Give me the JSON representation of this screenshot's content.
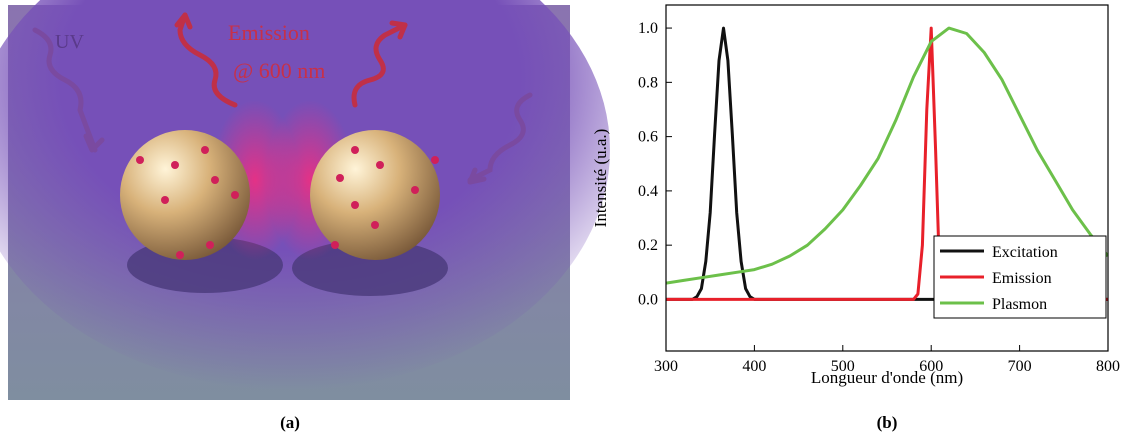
{
  "illustration": {
    "labels": [
      "UV",
      "Emission",
      "@ 600 nm"
    ],
    "caption": "(a)"
  },
  "chart_data": {
    "type": "line",
    "x_label": "Longueur d'onde (nm)",
    "y_label": "Intensité (u.a.)",
    "xlim": [
      300,
      800
    ],
    "xticks": [
      300,
      400,
      500,
      600,
      700,
      800
    ],
    "ylim": [
      -0.19,
      1.085
    ],
    "yticks": [
      {
        "value": 0,
        "label": "0.0"
      },
      0.2,
      0.4,
      0.6,
      0.8,
      {
        "value": 1,
        "label": "1.0"
      }
    ],
    "legend": "lower right",
    "series": [
      {
        "name": "Excitation",
        "color": "#111111",
        "x": [
          300,
          330,
          335,
          340,
          345,
          350,
          355,
          360,
          365,
          370,
          375,
          380,
          385,
          390,
          395,
          400,
          800
        ],
        "values": [
          0,
          0,
          0.01,
          0.04,
          0.14,
          0.32,
          0.61,
          0.88,
          1,
          0.88,
          0.61,
          0.32,
          0.14,
          0.04,
          0.01,
          0,
          0
        ]
      },
      {
        "name": "Emission",
        "color": "#e8202a",
        "x": [
          300,
          580,
          585,
          590,
          595,
          600,
          605,
          610,
          615,
          800
        ],
        "values": [
          0,
          0,
          0.02,
          0.2,
          0.7,
          1,
          0.55,
          0.05,
          0,
          0
        ]
      },
      {
        "name": "Plasmon",
        "color": "#6cc04a",
        "x": [
          300,
          320,
          340,
          360,
          380,
          400,
          420,
          440,
          460,
          480,
          500,
          520,
          540,
          560,
          580,
          600,
          620,
          640,
          660,
          680,
          700,
          720,
          740,
          760,
          780,
          800
        ],
        "values": [
          0.06,
          0.07,
          0.08,
          0.09,
          0.1,
          0.11,
          0.13,
          0.16,
          0.2,
          0.26,
          0.33,
          0.42,
          0.52,
          0.66,
          0.82,
          0.95,
          1.0,
          0.98,
          0.91,
          0.81,
          0.68,
          0.55,
          0.44,
          0.33,
          0.24,
          0.16
        ]
      }
    ]
  },
  "chart_caption": "(b)"
}
